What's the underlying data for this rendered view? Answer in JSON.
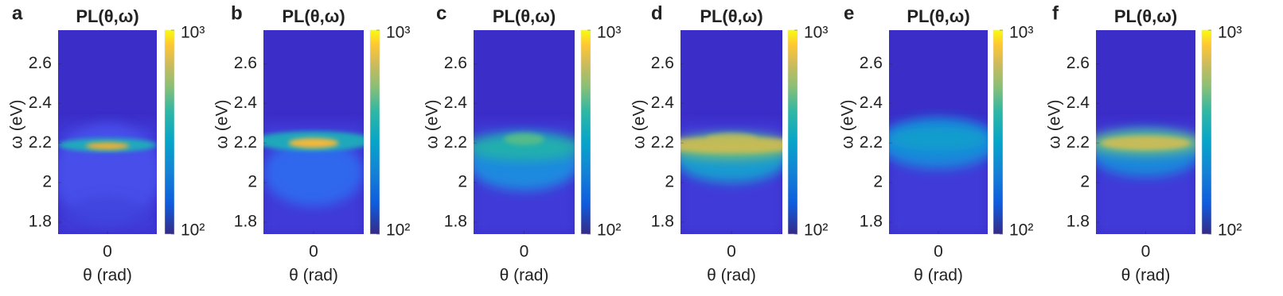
{
  "chart_data": [
    {
      "type": "heatmap",
      "panel": "a",
      "title": "PL(θ,ω)",
      "x_label": "θ (rad)",
      "y_label": "ω (eV)",
      "xlim": [
        -1,
        1
      ],
      "xticks": [
        0
      ],
      "ylim": [
        1.74,
        2.77
      ],
      "yticks": [
        1.8,
        2,
        2.2,
        2.4,
        2.6
      ],
      "colormap": "parula",
      "colorbar": {
        "scale": "log",
        "lim": [
          100,
          1000
        ],
        "ticks": [
          {
            "value": 100,
            "label": "10²"
          },
          {
            "value": 1000,
            "label": "10³"
          }
        ]
      }
    },
    {
      "type": "heatmap",
      "panel": "b",
      "title": "PL(θ,ω)",
      "x_label": "θ (rad)",
      "y_label": "ω (eV)",
      "xlim": [
        -1,
        1
      ],
      "xticks": [
        0
      ],
      "ylim": [
        1.74,
        2.77
      ],
      "yticks": [
        1.8,
        2,
        2.2,
        2.4,
        2.6
      ],
      "colormap": "parula",
      "colorbar": {
        "scale": "log",
        "lim": [
          100,
          1000
        ],
        "ticks": [
          {
            "value": 100,
            "label": "10²"
          },
          {
            "value": 1000,
            "label": "10³"
          }
        ]
      }
    },
    {
      "type": "heatmap",
      "panel": "c",
      "title": "PL(θ,ω)",
      "x_label": "θ (rad)",
      "y_label": "ω (eV)",
      "xlim": [
        -1,
        1
      ],
      "xticks": [
        0
      ],
      "ylim": [
        1.74,
        2.77
      ],
      "yticks": [
        1.8,
        2,
        2.2,
        2.4,
        2.6
      ],
      "colormap": "parula",
      "colorbar": {
        "scale": "log",
        "lim": [
          100,
          1000
        ],
        "ticks": [
          {
            "value": 100,
            "label": "10²"
          },
          {
            "value": 1000,
            "label": "10³"
          }
        ]
      }
    },
    {
      "type": "heatmap",
      "panel": "d",
      "title": "PL(θ,ω)",
      "x_label": "θ (rad)",
      "y_label": "ω (eV)",
      "xlim": [
        -1,
        1
      ],
      "xticks": [
        0
      ],
      "ylim": [
        1.74,
        2.77
      ],
      "yticks": [
        1.8,
        2,
        2.2,
        2.4,
        2.6
      ],
      "colormap": "parula",
      "colorbar": {
        "scale": "log",
        "lim": [
          100,
          1000
        ],
        "ticks": [
          {
            "value": 100,
            "label": "10²"
          },
          {
            "value": 1000,
            "label": "10³"
          }
        ]
      }
    },
    {
      "type": "heatmap",
      "panel": "e",
      "title": "PL(θ,ω)",
      "x_label": "θ (rad)",
      "y_label": "ω (eV)",
      "xlim": [
        -1,
        1
      ],
      "xticks": [
        0
      ],
      "ylim": [
        1.74,
        2.77
      ],
      "yticks": [
        1.8,
        2,
        2.2,
        2.4,
        2.6
      ],
      "colormap": "parula",
      "colorbar": {
        "scale": "log",
        "lim": [
          100,
          1000
        ],
        "ticks": [
          {
            "value": 100,
            "label": "10²"
          },
          {
            "value": 1000,
            "label": "10³"
          }
        ]
      }
    },
    {
      "type": "heatmap",
      "panel": "f",
      "title": "PL(θ,ω)",
      "x_label": "θ (rad)",
      "y_label": "ω (eV)",
      "xlim": [
        -1,
        1
      ],
      "xticks": [
        0
      ],
      "ylim": [
        1.74,
        2.77
      ],
      "yticks": [
        1.8,
        2,
        2.2,
        2.4,
        2.6
      ],
      "colormap": "parula",
      "colorbar": {
        "scale": "log",
        "lim": [
          100,
          1000
        ],
        "ticks": [
          {
            "value": 100,
            "label": "10²"
          },
          {
            "value": 1000,
            "label": "10³"
          }
        ]
      }
    }
  ]
}
